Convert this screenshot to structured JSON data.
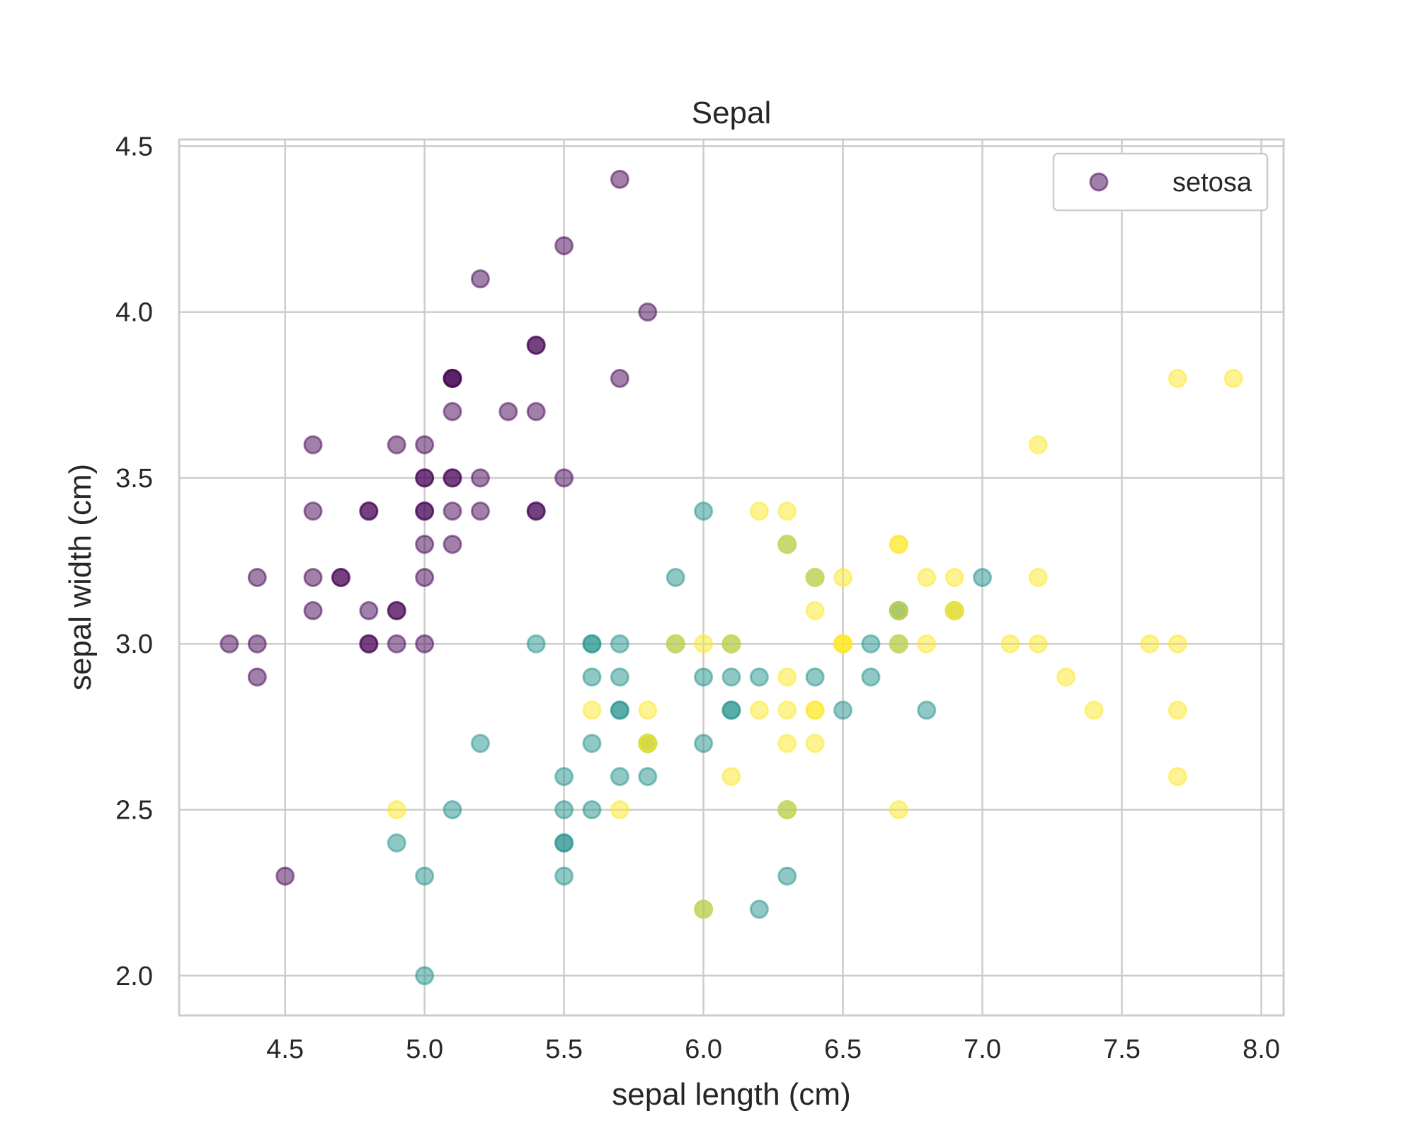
{
  "chart_data": {
    "type": "scatter",
    "title": "Sepal",
    "xlabel": "sepal length (cm)",
    "ylabel": "sepal width (cm)",
    "xlim": [
      4.12,
      8.08
    ],
    "ylim": [
      1.88,
      4.52
    ],
    "xticks": [
      "4.5",
      "5.0",
      "5.5",
      "6.0",
      "6.5",
      "7.0",
      "7.5",
      "8.0"
    ],
    "yticks": [
      "2.0",
      "2.5",
      "3.0",
      "3.5",
      "4.0",
      "4.5"
    ],
    "grid": true,
    "legend": {
      "placement": "top-right",
      "entries": [
        "setosa"
      ]
    },
    "colors": {
      "setosa": "#440154",
      "versicolor": "#21918c",
      "virginica": "#fde725"
    },
    "opacity": 0.5,
    "series": [
      {
        "name": "setosa",
        "points": [
          [
            5.1,
            3.5
          ],
          [
            4.9,
            3.0
          ],
          [
            4.7,
            3.2
          ],
          [
            4.6,
            3.1
          ],
          [
            5.0,
            3.6
          ],
          [
            5.4,
            3.9
          ],
          [
            4.6,
            3.4
          ],
          [
            5.0,
            3.4
          ],
          [
            4.4,
            2.9
          ],
          [
            4.9,
            3.1
          ],
          [
            5.4,
            3.7
          ],
          [
            4.8,
            3.4
          ],
          [
            4.8,
            3.0
          ],
          [
            4.3,
            3.0
          ],
          [
            5.8,
            4.0
          ],
          [
            5.7,
            4.4
          ],
          [
            5.4,
            3.9
          ],
          [
            5.1,
            3.5
          ],
          [
            5.7,
            3.8
          ],
          [
            5.1,
            3.8
          ],
          [
            5.4,
            3.4
          ],
          [
            5.1,
            3.7
          ],
          [
            4.6,
            3.6
          ],
          [
            5.1,
            3.3
          ],
          [
            4.8,
            3.4
          ],
          [
            5.0,
            3.0
          ],
          [
            5.0,
            3.4
          ],
          [
            5.2,
            3.5
          ],
          [
            5.2,
            3.4
          ],
          [
            4.7,
            3.2
          ],
          [
            4.8,
            3.1
          ],
          [
            5.4,
            3.4
          ],
          [
            5.2,
            4.1
          ],
          [
            5.5,
            4.2
          ],
          [
            4.9,
            3.1
          ],
          [
            5.0,
            3.2
          ],
          [
            5.5,
            3.5
          ],
          [
            4.9,
            3.6
          ],
          [
            4.4,
            3.0
          ],
          [
            5.1,
            3.4
          ],
          [
            5.0,
            3.5
          ],
          [
            4.5,
            2.3
          ],
          [
            4.4,
            3.2
          ],
          [
            5.0,
            3.5
          ],
          [
            5.1,
            3.8
          ],
          [
            4.8,
            3.0
          ],
          [
            5.1,
            3.8
          ],
          [
            4.6,
            3.2
          ],
          [
            5.3,
            3.7
          ],
          [
            5.0,
            3.3
          ]
        ]
      },
      {
        "name": "",
        "points": [
          [
            7.0,
            3.2
          ],
          [
            6.4,
            3.2
          ],
          [
            6.9,
            3.1
          ],
          [
            5.5,
            2.3
          ],
          [
            6.5,
            2.8
          ],
          [
            5.7,
            2.8
          ],
          [
            6.3,
            3.3
          ],
          [
            4.9,
            2.4
          ],
          [
            6.6,
            2.9
          ],
          [
            5.2,
            2.7
          ],
          [
            5.0,
            2.0
          ],
          [
            5.9,
            3.0
          ],
          [
            6.0,
            2.2
          ],
          [
            6.1,
            2.9
          ],
          [
            5.6,
            2.9
          ],
          [
            6.7,
            3.1
          ],
          [
            5.6,
            3.0
          ],
          [
            5.8,
            2.7
          ],
          [
            6.2,
            2.2
          ],
          [
            5.6,
            2.5
          ],
          [
            5.9,
            3.2
          ],
          [
            6.1,
            2.8
          ],
          [
            6.3,
            2.5
          ],
          [
            6.1,
            2.8
          ],
          [
            6.4,
            2.9
          ],
          [
            6.6,
            3.0
          ],
          [
            6.8,
            2.8
          ],
          [
            6.7,
            3.0
          ],
          [
            6.0,
            2.9
          ],
          [
            5.7,
            2.6
          ],
          [
            5.5,
            2.4
          ],
          [
            5.5,
            2.4
          ],
          [
            5.8,
            2.7
          ],
          [
            6.0,
            2.7
          ],
          [
            5.4,
            3.0
          ],
          [
            6.0,
            3.4
          ],
          [
            6.7,
            3.1
          ],
          [
            6.3,
            2.3
          ],
          [
            5.6,
            3.0
          ],
          [
            5.5,
            2.5
          ],
          [
            5.5,
            2.6
          ],
          [
            6.1,
            3.0
          ],
          [
            5.8,
            2.6
          ],
          [
            5.0,
            2.3
          ],
          [
            5.6,
            2.7
          ],
          [
            5.7,
            3.0
          ],
          [
            5.7,
            2.9
          ],
          [
            6.2,
            2.9
          ],
          [
            5.1,
            2.5
          ],
          [
            5.7,
            2.8
          ]
        ]
      },
      {
        "name": "",
        "points": [
          [
            6.3,
            3.3
          ],
          [
            5.8,
            2.7
          ],
          [
            7.1,
            3.0
          ],
          [
            6.3,
            2.9
          ],
          [
            6.5,
            3.0
          ],
          [
            7.6,
            3.0
          ],
          [
            4.9,
            2.5
          ],
          [
            7.3,
            2.9
          ],
          [
            6.7,
            2.5
          ],
          [
            7.2,
            3.6
          ],
          [
            6.5,
            3.2
          ],
          [
            6.4,
            2.7
          ],
          [
            6.8,
            3.0
          ],
          [
            5.7,
            2.5
          ],
          [
            5.8,
            2.8
          ],
          [
            6.4,
            3.2
          ],
          [
            6.5,
            3.0
          ],
          [
            7.7,
            3.8
          ],
          [
            7.7,
            2.6
          ],
          [
            6.0,
            2.2
          ],
          [
            6.9,
            3.2
          ],
          [
            5.6,
            2.8
          ],
          [
            7.7,
            2.8
          ],
          [
            6.3,
            2.7
          ],
          [
            6.7,
            3.3
          ],
          [
            7.2,
            3.2
          ],
          [
            6.2,
            2.8
          ],
          [
            6.1,
            3.0
          ],
          [
            6.4,
            2.8
          ],
          [
            7.2,
            3.0
          ],
          [
            7.4,
            2.8
          ],
          [
            7.9,
            3.8
          ],
          [
            6.4,
            2.8
          ],
          [
            6.3,
            2.8
          ],
          [
            6.1,
            2.6
          ],
          [
            7.7,
            3.0
          ],
          [
            6.3,
            3.4
          ],
          [
            6.4,
            3.1
          ],
          [
            6.0,
            3.0
          ],
          [
            6.9,
            3.1
          ],
          [
            6.7,
            3.1
          ],
          [
            6.9,
            3.1
          ],
          [
            5.8,
            2.7
          ],
          [
            6.8,
            3.2
          ],
          [
            6.7,
            3.3
          ],
          [
            6.7,
            3.0
          ],
          [
            6.3,
            2.5
          ],
          [
            6.5,
            3.0
          ],
          [
            6.2,
            3.4
          ],
          [
            5.9,
            3.0
          ]
        ]
      }
    ]
  }
}
